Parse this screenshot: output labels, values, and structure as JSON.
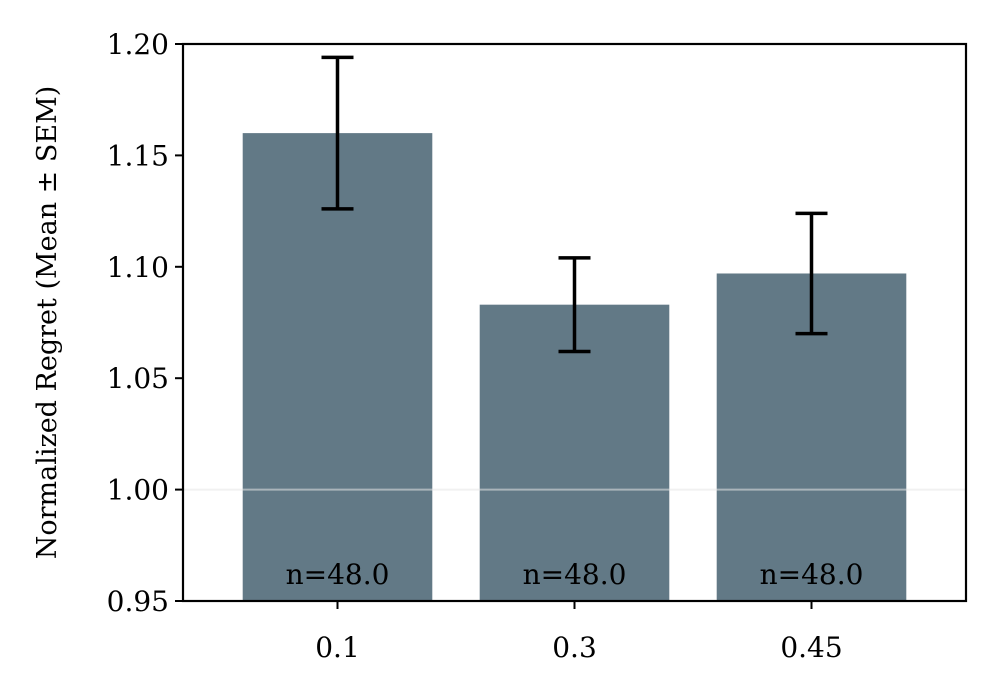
{
  "chart_data": {
    "type": "bar",
    "title": "",
    "xlabel": "",
    "ylabel": "Normalized Regret (Mean ± SEM)",
    "categories": [
      "0.1",
      "0.3",
      "0.45"
    ],
    "values": [
      1.16,
      1.083,
      1.097
    ],
    "error": [
      0.034,
      0.021,
      0.027
    ],
    "count_labels": [
      "n=48.0",
      "n=48.0",
      "n=48.0"
    ],
    "ylim": [
      0.95,
      1.2
    ],
    "yticks": [
      0.95,
      1.0,
      1.05,
      1.1,
      1.15,
      1.2
    ],
    "ytick_labels": [
      "0.95",
      "1.00",
      "1.05",
      "1.10",
      "1.15",
      "1.20"
    ],
    "reference_line": 1.0,
    "grid": false,
    "colors": {
      "bar": "#627986",
      "error_bar": "#000000",
      "reference_line": "#e6e6e6",
      "axes": "#000000"
    }
  }
}
